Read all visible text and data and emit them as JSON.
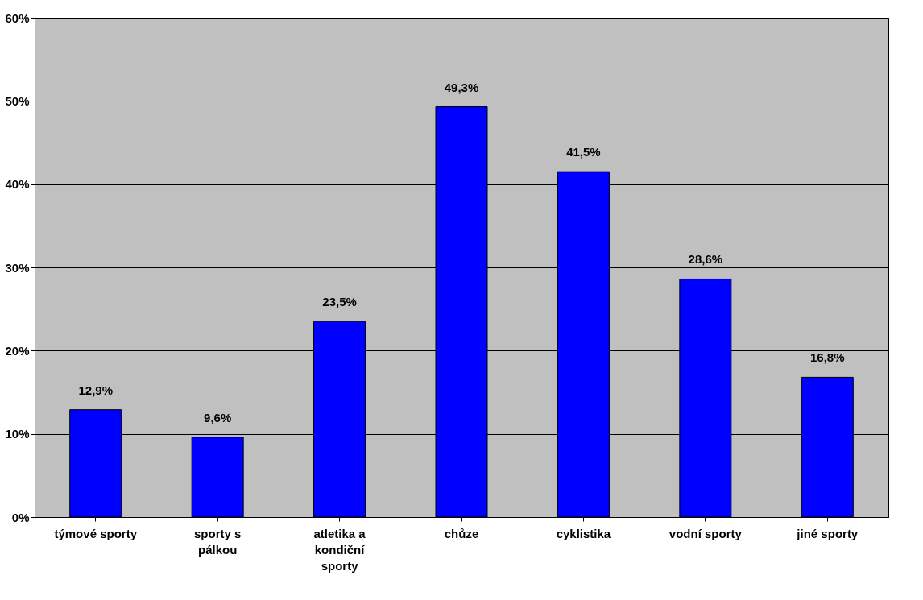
{
  "chart_data": {
    "type": "bar",
    "categories": [
      "týmové sporty",
      "sporty s pálkou",
      "atletika a kondiční sporty",
      "chůze",
      "cyklistika",
      "vodní sporty",
      "jiné sporty"
    ],
    "values": [
      12.9,
      9.6,
      23.5,
      49.3,
      41.5,
      28.6,
      16.8
    ],
    "value_labels": [
      "12,9%",
      "9,6%",
      "23,5%",
      "49,3%",
      "41,5%",
      "28,6%",
      "16,8%"
    ],
    "color": "#0000ff",
    "ylim": [
      0,
      60
    ],
    "yticks": [
      {
        "value": 0,
        "label": "0%"
      },
      {
        "value": 10,
        "label": "10%"
      },
      {
        "value": 20,
        "label": "20%"
      },
      {
        "value": 30,
        "label": "30%"
      },
      {
        "value": 40,
        "label": "40%"
      },
      {
        "value": 50,
        "label": "50%"
      },
      {
        "value": 60,
        "label": "60%"
      }
    ],
    "grid": "y"
  }
}
